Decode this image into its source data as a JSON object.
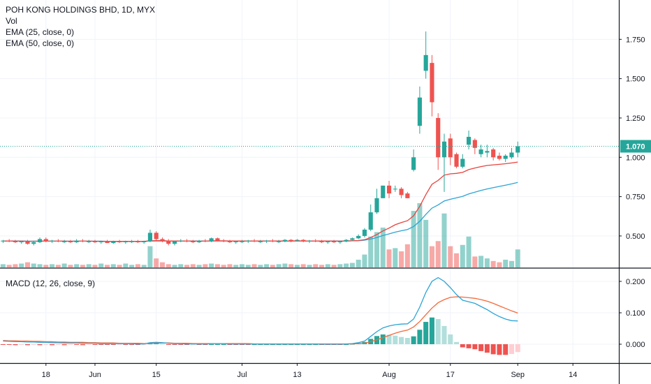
{
  "chart_data": {
    "type": "candlestick",
    "title": "POH KONG HOLDINGS BHD, 1D, MYX",
    "indicators": [
      "Vol",
      "EMA (25, close, 0)",
      "EMA (50, close, 0)"
    ],
    "macd_label": "MACD (12, 26, close, 9)",
    "last_price": "1.070",
    "price_ticks": [
      "1.750",
      "1.500",
      "1.250",
      "1.000",
      "0.750",
      "0.500"
    ],
    "price_tick_values": [
      1.75,
      1.5,
      1.25,
      1.0,
      0.75,
      0.5
    ],
    "price_range": [
      0.3,
      2.0
    ],
    "macd_ticks": [
      "0.200",
      "0.100",
      "0.000"
    ],
    "macd_tick_values": [
      0.2,
      0.1,
      0.0
    ],
    "macd_range": [
      -0.06,
      0.24
    ],
    "x_labels": [
      "18",
      "Jun",
      "15",
      "Jul",
      "13",
      "Aug",
      "17",
      "Sep",
      "14"
    ],
    "x_label_index": [
      7,
      15,
      25,
      39,
      48,
      63,
      73,
      84,
      93
    ],
    "bars_visible": 101,
    "colors": {
      "up": "#26a69a",
      "down": "#ef5350",
      "ema25": "#e8423e",
      "ema50": "#2ba4d6",
      "macd_line": "#2ba4d6",
      "signal_line": "#f5693a",
      "price_label_bg": "#26a69a"
    },
    "ohlc": [
      [
        0.465,
        0.475,
        0.455,
        0.47
      ],
      [
        0.47,
        0.48,
        0.46,
        0.465
      ],
      [
        0.465,
        0.475,
        0.455,
        0.46
      ],
      [
        0.46,
        0.47,
        0.45,
        0.465
      ],
      [
        0.465,
        0.475,
        0.445,
        0.45
      ],
      [
        0.45,
        0.47,
        0.44,
        0.46
      ],
      [
        0.46,
        0.49,
        0.455,
        0.48
      ],
      [
        0.48,
        0.49,
        0.46,
        0.465
      ],
      [
        0.465,
        0.475,
        0.455,
        0.47
      ],
      [
        0.47,
        0.48,
        0.46,
        0.465
      ],
      [
        0.465,
        0.475,
        0.455,
        0.465
      ],
      [
        0.465,
        0.475,
        0.455,
        0.46
      ],
      [
        0.46,
        0.48,
        0.455,
        0.47
      ],
      [
        0.47,
        0.48,
        0.46,
        0.465
      ],
      [
        0.465,
        0.475,
        0.455,
        0.465
      ],
      [
        0.465,
        0.475,
        0.455,
        0.46
      ],
      [
        0.46,
        0.47,
        0.45,
        0.465
      ],
      [
        0.465,
        0.475,
        0.455,
        0.455
      ],
      [
        0.455,
        0.47,
        0.45,
        0.465
      ],
      [
        0.465,
        0.475,
        0.455,
        0.46
      ],
      [
        0.46,
        0.47,
        0.45,
        0.465
      ],
      [
        0.465,
        0.475,
        0.455,
        0.465
      ],
      [
        0.465,
        0.475,
        0.455,
        0.46
      ],
      [
        0.46,
        0.47,
        0.45,
        0.465
      ],
      [
        0.465,
        0.54,
        0.46,
        0.52
      ],
      [
        0.52,
        0.53,
        0.47,
        0.48
      ],
      [
        0.48,
        0.49,
        0.46,
        0.47
      ],
      [
        0.47,
        0.48,
        0.44,
        0.45
      ],
      [
        0.45,
        0.47,
        0.44,
        0.465
      ],
      [
        0.465,
        0.48,
        0.46,
        0.47
      ],
      [
        0.47,
        0.48,
        0.46,
        0.465
      ],
      [
        0.465,
        0.475,
        0.455,
        0.46
      ],
      [
        0.46,
        0.475,
        0.455,
        0.47
      ],
      [
        0.47,
        0.48,
        0.46,
        0.465
      ],
      [
        0.465,
        0.49,
        0.46,
        0.485
      ],
      [
        0.485,
        0.49,
        0.465,
        0.47
      ],
      [
        0.47,
        0.48,
        0.46,
        0.465
      ],
      [
        0.465,
        0.475,
        0.455,
        0.46
      ],
      [
        0.46,
        0.47,
        0.45,
        0.465
      ],
      [
        0.465,
        0.475,
        0.455,
        0.465
      ],
      [
        0.465,
        0.475,
        0.455,
        0.47
      ],
      [
        0.47,
        0.48,
        0.46,
        0.465
      ],
      [
        0.465,
        0.475,
        0.455,
        0.465
      ],
      [
        0.465,
        0.475,
        0.455,
        0.47
      ],
      [
        0.47,
        0.48,
        0.46,
        0.465
      ],
      [
        0.465,
        0.475,
        0.455,
        0.465
      ],
      [
        0.465,
        0.48,
        0.46,
        0.475
      ],
      [
        0.475,
        0.48,
        0.46,
        0.47
      ],
      [
        0.47,
        0.48,
        0.465,
        0.475
      ],
      [
        0.475,
        0.48,
        0.46,
        0.465
      ],
      [
        0.465,
        0.475,
        0.455,
        0.47
      ],
      [
        0.47,
        0.48,
        0.46,
        0.465
      ],
      [
        0.465,
        0.475,
        0.455,
        0.46
      ],
      [
        0.46,
        0.47,
        0.45,
        0.465
      ],
      [
        0.465,
        0.475,
        0.455,
        0.46
      ],
      [
        0.46,
        0.47,
        0.45,
        0.465
      ],
      [
        0.465,
        0.48,
        0.46,
        0.475
      ],
      [
        0.475,
        0.49,
        0.47,
        0.485
      ],
      [
        0.485,
        0.51,
        0.48,
        0.5
      ],
      [
        0.5,
        0.55,
        0.49,
        0.54
      ],
      [
        0.54,
        0.7,
        0.53,
        0.65
      ],
      [
        0.65,
        0.8,
        0.64,
        0.74
      ],
      [
        0.74,
        0.82,
        0.75,
        0.82
      ],
      [
        0.82,
        0.85,
        0.74,
        0.77
      ],
      [
        0.8,
        0.82,
        0.78,
        0.8
      ],
      [
        0.8,
        0.81,
        0.74,
        0.76
      ],
      [
        0.77,
        0.78,
        0.74,
        0.74
      ],
      [
        0.92,
        1.05,
        0.91,
        1.0
      ],
      [
        1.2,
        1.45,
        1.15,
        1.38
      ],
      [
        1.55,
        1.8,
        1.5,
        1.65
      ],
      [
        1.6,
        1.65,
        1.26,
        1.35
      ],
      [
        1.25,
        1.28,
        0.92,
        1.0
      ],
      [
        1.0,
        1.15,
        0.78,
        1.1
      ],
      [
        1.12,
        1.15,
        0.95,
        1.0
      ],
      [
        1.02,
        1.03,
        0.93,
        0.94
      ],
      [
        0.94,
        1.02,
        0.93,
        0.99
      ],
      [
        1.08,
        1.17,
        1.05,
        1.13
      ],
      [
        1.11,
        1.12,
        1.02,
        1.06
      ],
      [
        1.02,
        1.08,
        1.0,
        1.05
      ],
      [
        1.03,
        1.08,
        1.0,
        1.04
      ],
      [
        1.05,
        1.06,
        0.98,
        1.0
      ],
      [
        1.01,
        1.03,
        0.98,
        0.99
      ],
      [
        0.99,
        1.02,
        0.97,
        1.01
      ],
      [
        1.0,
        1.06,
        0.99,
        1.03
      ],
      [
        1.03,
        1.1,
        1.0,
        1.07
      ]
    ],
    "volume_scale": [
      0.05,
      0.04,
      0.05,
      0.06,
      0.08,
      0.06,
      0.05,
      0.04,
      0.05,
      0.04,
      0.06,
      0.04,
      0.05,
      0.04,
      0.05,
      0.04,
      0.06,
      0.04,
      0.05,
      0.04,
      0.06,
      0.04,
      0.05,
      0.04,
      0.33,
      0.14,
      0.08,
      0.05,
      0.04,
      0.05,
      0.04,
      0.05,
      0.04,
      0.05,
      0.06,
      0.05,
      0.04,
      0.05,
      0.04,
      0.05,
      0.04,
      0.05,
      0.04,
      0.05,
      0.04,
      0.05,
      0.06,
      0.05,
      0.04,
      0.05,
      0.04,
      0.05,
      0.04,
      0.05,
      0.04,
      0.05,
      0.06,
      0.07,
      0.12,
      0.2,
      0.48,
      0.55,
      0.62,
      0.28,
      0.3,
      0.25,
      0.36,
      0.88,
      1.0,
      0.74,
      0.33,
      0.41,
      0.84,
      0.33,
      0.22,
      0.35,
      0.48,
      0.17,
      0.18,
      0.14,
      0.1,
      0.08,
      0.12,
      0.1,
      0.28
    ],
    "ema25": [
      0.468,
      0.468,
      0.467,
      0.467,
      0.466,
      0.466,
      0.467,
      0.467,
      0.467,
      0.467,
      0.467,
      0.466,
      0.467,
      0.467,
      0.467,
      0.466,
      0.466,
      0.465,
      0.465,
      0.465,
      0.465,
      0.465,
      0.465,
      0.465,
      0.469,
      0.47,
      0.47,
      0.468,
      0.468,
      0.468,
      0.468,
      0.467,
      0.467,
      0.467,
      0.469,
      0.469,
      0.469,
      0.468,
      0.468,
      0.468,
      0.468,
      0.468,
      0.468,
      0.468,
      0.468,
      0.468,
      0.468,
      0.468,
      0.469,
      0.468,
      0.468,
      0.468,
      0.468,
      0.468,
      0.467,
      0.467,
      0.468,
      0.469,
      0.471,
      0.476,
      0.49,
      0.509,
      0.532,
      0.55,
      0.571,
      0.585,
      0.597,
      0.628,
      0.688,
      0.763,
      0.828,
      0.853,
      0.887,
      0.895,
      0.898,
      0.904,
      0.922,
      0.932,
      0.941,
      0.948,
      0.952,
      0.955,
      0.959,
      0.964,
      0.97
    ],
    "ema50": [
      0.468,
      0.468,
      0.468,
      0.468,
      0.467,
      0.467,
      0.467,
      0.467,
      0.467,
      0.467,
      0.467,
      0.467,
      0.467,
      0.467,
      0.467,
      0.467,
      0.467,
      0.466,
      0.466,
      0.466,
      0.466,
      0.466,
      0.466,
      0.466,
      0.468,
      0.468,
      0.468,
      0.468,
      0.468,
      0.468,
      0.468,
      0.468,
      0.468,
      0.468,
      0.468,
      0.468,
      0.468,
      0.468,
      0.468,
      0.468,
      0.468,
      0.468,
      0.468,
      0.468,
      0.468,
      0.468,
      0.468,
      0.468,
      0.468,
      0.468,
      0.468,
      0.468,
      0.468,
      0.468,
      0.468,
      0.468,
      0.468,
      0.469,
      0.47,
      0.473,
      0.48,
      0.49,
      0.503,
      0.513,
      0.524,
      0.533,
      0.541,
      0.56,
      0.593,
      0.637,
      0.677,
      0.697,
      0.722,
      0.733,
      0.742,
      0.752,
      0.767,
      0.778,
      0.789,
      0.799,
      0.807,
      0.815,
      0.823,
      0.831,
      0.84
    ],
    "macd_line": [
      0.01,
      0.009,
      0.008,
      0.008,
      0.007,
      0.007,
      0.006,
      0.006,
      0.005,
      0.005,
      0.004,
      0.004,
      0.004,
      0.003,
      0.003,
      0.003,
      0.002,
      0.002,
      0.002,
      0.002,
      0.002,
      0.002,
      0.001,
      0.001,
      0.005,
      0.006,
      0.005,
      0.003,
      0.002,
      0.002,
      0.001,
      0.001,
      0.001,
      0.001,
      0.002,
      0.002,
      0.002,
      0.001,
      0.001,
      0.001,
      0.001,
      0.001,
      0.001,
      0.001,
      0.001,
      0.001,
      0.001,
      0.001,
      0.001,
      0.001,
      0.001,
      0.001,
      0.0,
      0.0,
      0.0,
      0.0,
      0.001,
      0.002,
      0.005,
      0.01,
      0.025,
      0.04,
      0.052,
      0.058,
      0.062,
      0.064,
      0.065,
      0.08,
      0.118,
      0.165,
      0.2,
      0.212,
      0.2,
      0.18,
      0.158,
      0.14,
      0.135,
      0.13,
      0.12,
      0.11,
      0.098,
      0.088,
      0.08,
      0.075,
      0.074
    ],
    "signal_line": [
      0.012,
      0.011,
      0.011,
      0.01,
      0.01,
      0.009,
      0.009,
      0.008,
      0.008,
      0.007,
      0.007,
      0.006,
      0.006,
      0.006,
      0.005,
      0.005,
      0.004,
      0.004,
      0.004,
      0.003,
      0.003,
      0.003,
      0.003,
      0.002,
      0.003,
      0.003,
      0.004,
      0.004,
      0.003,
      0.003,
      0.003,
      0.002,
      0.002,
      0.002,
      0.002,
      0.002,
      0.002,
      0.002,
      0.002,
      0.002,
      0.002,
      0.001,
      0.001,
      0.001,
      0.001,
      0.001,
      0.001,
      0.001,
      0.001,
      0.001,
      0.001,
      0.001,
      0.001,
      0.001,
      0.001,
      0.001,
      0.001,
      0.001,
      0.002,
      0.003,
      0.008,
      0.014,
      0.021,
      0.028,
      0.035,
      0.041,
      0.045,
      0.055,
      0.072,
      0.094,
      0.115,
      0.132,
      0.142,
      0.149,
      0.151,
      0.15,
      0.148,
      0.146,
      0.142,
      0.137,
      0.13,
      0.122,
      0.114,
      0.106,
      0.099
    ]
  }
}
